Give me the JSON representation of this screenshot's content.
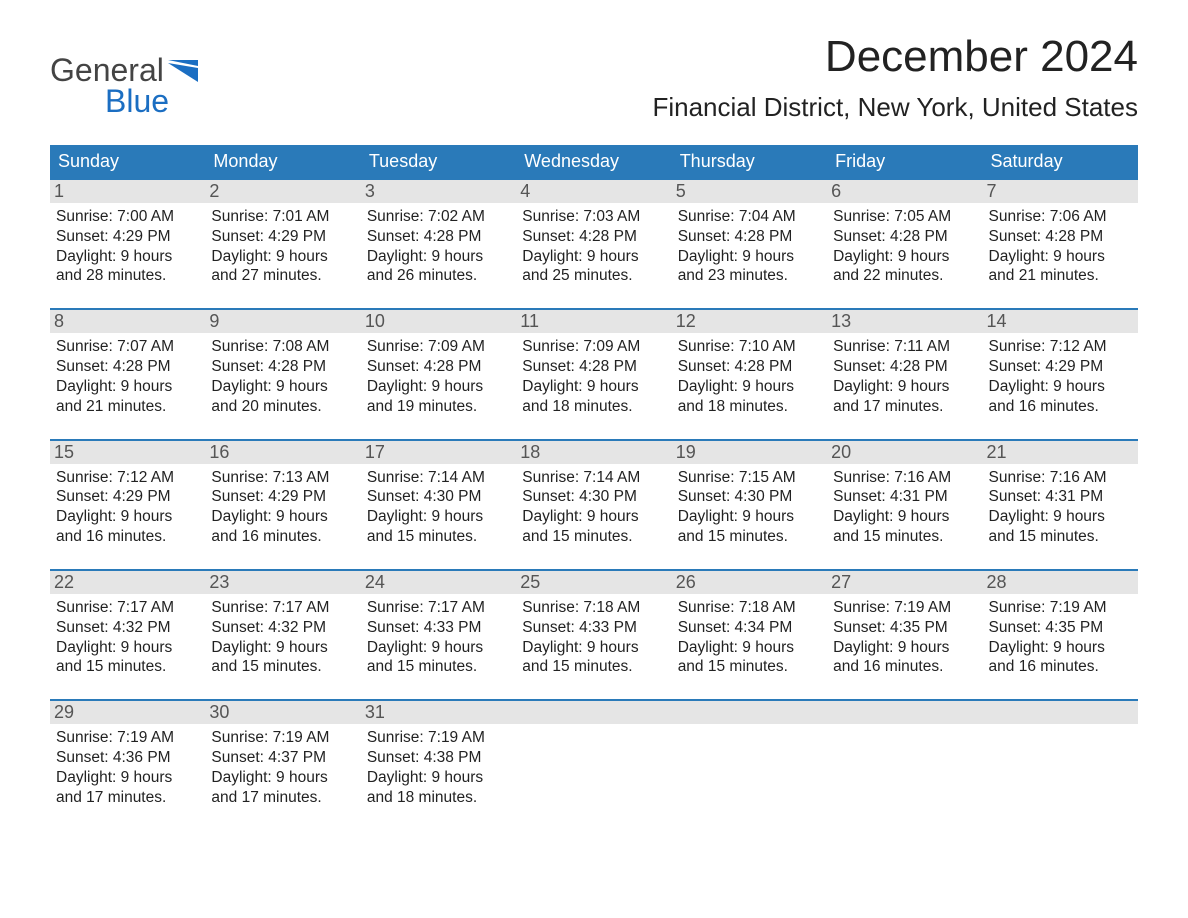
{
  "logo": {
    "text1": "General",
    "text2": "Blue",
    "flag_color": "#1b6ec2"
  },
  "title": "December 2024",
  "location": "Financial District, New York, United States",
  "colors": {
    "header_bg": "#2a7ab9",
    "header_text": "#ffffff",
    "daynum_bg": "#e5e5e5",
    "daynum_text": "#555555",
    "week_border": "#2a7ab9",
    "body_text": "#222222",
    "background": "#ffffff"
  },
  "fonts": {
    "title_size_pt": 33,
    "location_size_pt": 20,
    "dayheader_size_pt": 14,
    "daynum_size_pt": 14,
    "body_size_pt": 12
  },
  "day_headers": [
    "Sunday",
    "Monday",
    "Tuesday",
    "Wednesday",
    "Thursday",
    "Friday",
    "Saturday"
  ],
  "weeks": [
    [
      {
        "n": "1",
        "sunrise": "7:00 AM",
        "sunset": "4:29 PM",
        "day_h": 9,
        "day_m": 28
      },
      {
        "n": "2",
        "sunrise": "7:01 AM",
        "sunset": "4:29 PM",
        "day_h": 9,
        "day_m": 27
      },
      {
        "n": "3",
        "sunrise": "7:02 AM",
        "sunset": "4:28 PM",
        "day_h": 9,
        "day_m": 26
      },
      {
        "n": "4",
        "sunrise": "7:03 AM",
        "sunset": "4:28 PM",
        "day_h": 9,
        "day_m": 25
      },
      {
        "n": "5",
        "sunrise": "7:04 AM",
        "sunset": "4:28 PM",
        "day_h": 9,
        "day_m": 23
      },
      {
        "n": "6",
        "sunrise": "7:05 AM",
        "sunset": "4:28 PM",
        "day_h": 9,
        "day_m": 22
      },
      {
        "n": "7",
        "sunrise": "7:06 AM",
        "sunset": "4:28 PM",
        "day_h": 9,
        "day_m": 21
      }
    ],
    [
      {
        "n": "8",
        "sunrise": "7:07 AM",
        "sunset": "4:28 PM",
        "day_h": 9,
        "day_m": 21
      },
      {
        "n": "9",
        "sunrise": "7:08 AM",
        "sunset": "4:28 PM",
        "day_h": 9,
        "day_m": 20
      },
      {
        "n": "10",
        "sunrise": "7:09 AM",
        "sunset": "4:28 PM",
        "day_h": 9,
        "day_m": 19
      },
      {
        "n": "11",
        "sunrise": "7:09 AM",
        "sunset": "4:28 PM",
        "day_h": 9,
        "day_m": 18
      },
      {
        "n": "12",
        "sunrise": "7:10 AM",
        "sunset": "4:28 PM",
        "day_h": 9,
        "day_m": 18
      },
      {
        "n": "13",
        "sunrise": "7:11 AM",
        "sunset": "4:28 PM",
        "day_h": 9,
        "day_m": 17
      },
      {
        "n": "14",
        "sunrise": "7:12 AM",
        "sunset": "4:29 PM",
        "day_h": 9,
        "day_m": 16
      }
    ],
    [
      {
        "n": "15",
        "sunrise": "7:12 AM",
        "sunset": "4:29 PM",
        "day_h": 9,
        "day_m": 16
      },
      {
        "n": "16",
        "sunrise": "7:13 AM",
        "sunset": "4:29 PM",
        "day_h": 9,
        "day_m": 16
      },
      {
        "n": "17",
        "sunrise": "7:14 AM",
        "sunset": "4:30 PM",
        "day_h": 9,
        "day_m": 15
      },
      {
        "n": "18",
        "sunrise": "7:14 AM",
        "sunset": "4:30 PM",
        "day_h": 9,
        "day_m": 15
      },
      {
        "n": "19",
        "sunrise": "7:15 AM",
        "sunset": "4:30 PM",
        "day_h": 9,
        "day_m": 15
      },
      {
        "n": "20",
        "sunrise": "7:16 AM",
        "sunset": "4:31 PM",
        "day_h": 9,
        "day_m": 15
      },
      {
        "n": "21",
        "sunrise": "7:16 AM",
        "sunset": "4:31 PM",
        "day_h": 9,
        "day_m": 15
      }
    ],
    [
      {
        "n": "22",
        "sunrise": "7:17 AM",
        "sunset": "4:32 PM",
        "day_h": 9,
        "day_m": 15
      },
      {
        "n": "23",
        "sunrise": "7:17 AM",
        "sunset": "4:32 PM",
        "day_h": 9,
        "day_m": 15
      },
      {
        "n": "24",
        "sunrise": "7:17 AM",
        "sunset": "4:33 PM",
        "day_h": 9,
        "day_m": 15
      },
      {
        "n": "25",
        "sunrise": "7:18 AM",
        "sunset": "4:33 PM",
        "day_h": 9,
        "day_m": 15
      },
      {
        "n": "26",
        "sunrise": "7:18 AM",
        "sunset": "4:34 PM",
        "day_h": 9,
        "day_m": 15
      },
      {
        "n": "27",
        "sunrise": "7:19 AM",
        "sunset": "4:35 PM",
        "day_h": 9,
        "day_m": 16
      },
      {
        "n": "28",
        "sunrise": "7:19 AM",
        "sunset": "4:35 PM",
        "day_h": 9,
        "day_m": 16
      }
    ],
    [
      {
        "n": "29",
        "sunrise": "7:19 AM",
        "sunset": "4:36 PM",
        "day_h": 9,
        "day_m": 17
      },
      {
        "n": "30",
        "sunrise": "7:19 AM",
        "sunset": "4:37 PM",
        "day_h": 9,
        "day_m": 17
      },
      {
        "n": "31",
        "sunrise": "7:19 AM",
        "sunset": "4:38 PM",
        "day_h": 9,
        "day_m": 18
      },
      null,
      null,
      null,
      null
    ]
  ],
  "labels": {
    "sunrise": "Sunrise:",
    "sunset": "Sunset:",
    "daylight": "Daylight:",
    "hours": "hours",
    "and": "and",
    "minutes": "minutes."
  }
}
